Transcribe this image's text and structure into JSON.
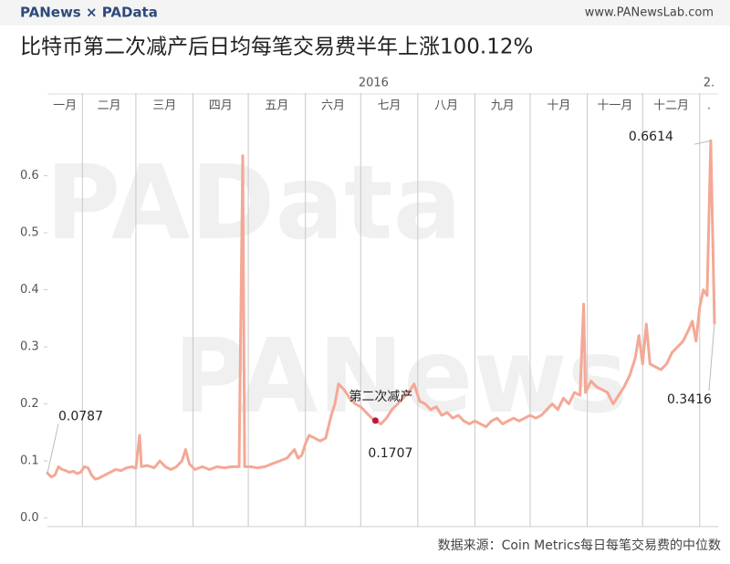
{
  "header": {
    "logo": "PANews × PAData",
    "site": "www.PANewsLab.com"
  },
  "watermarks": [
    "PAData",
    "PANews"
  ],
  "source": "数据来源：Coin Metrics每日每笔交易费的中位数",
  "chart_data": {
    "type": "line",
    "title": "比特币第二次减产后日均每笔交易费半年上涨100.12%",
    "annotation": "第二次减产",
    "year_ticks": [
      {
        "value": 0,
        "label": "2016"
      },
      {
        "value": 366,
        "label": "2."
      }
    ],
    "xticks": [
      {
        "value": 0,
        "label": "一月"
      },
      {
        "value": 31,
        "label": "二月"
      },
      {
        "value": 60,
        "label": "三月"
      },
      {
        "value": 91,
        "label": "四月"
      },
      {
        "value": 121,
        "label": "五月"
      },
      {
        "value": 152,
        "label": "六月"
      },
      {
        "value": 182,
        "label": "七月"
      },
      {
        "value": 213,
        "label": "八月"
      },
      {
        "value": 244,
        "label": "九月"
      },
      {
        "value": 274,
        "label": "十月"
      },
      {
        "value": 305,
        "label": "十一月"
      },
      {
        "value": 335,
        "label": "十二月"
      },
      {
        "value": 366,
        "label": "."
      }
    ],
    "xlim": [
      12,
      376
    ],
    "ylim": [
      -0.015,
      0.7
    ],
    "yticks": [
      {
        "value": 0,
        "label": "0.0"
      },
      0.1,
      0.2,
      0.3,
      0.4,
      0.5,
      0.6
    ],
    "grid": false,
    "highlight_color": "#c0143c",
    "series": [
      {
        "name": "每日每笔交易费的中位数",
        "color": "#f4a896",
        "x": [
          12,
          14,
          16,
          18,
          20,
          22,
          24,
          26,
          28,
          30,
          32,
          34,
          36,
          38,
          40,
          43,
          46,
          49,
          52,
          55,
          58,
          60,
          62,
          63,
          66,
          70,
          73,
          76,
          79,
          82,
          85,
          87,
          89,
          92,
          96,
          100,
          104,
          108,
          112,
          116,
          118,
          119,
          122,
          126,
          130,
          134,
          138,
          142,
          146,
          148,
          150,
          152,
          154,
          157,
          160,
          163,
          166,
          168,
          170,
          173,
          176,
          179,
          182,
          185,
          188,
          190,
          193,
          196,
          199,
          202,
          205,
          208,
          211,
          214,
          217,
          220,
          223,
          226,
          229,
          232,
          235,
          238,
          241,
          244,
          247,
          250,
          253,
          256,
          259,
          262,
          265,
          268,
          271,
          274,
          277,
          280,
          283,
          286,
          289,
          292,
          295,
          298,
          301,
          303,
          304,
          307,
          310,
          313,
          316,
          319,
          322,
          325,
          328,
          331,
          333,
          335,
          337,
          339,
          342,
          345,
          348,
          351,
          354,
          357,
          360,
          362,
          364,
          366,
          368,
          370,
          372,
          374
        ],
        "values": [
          0.0787,
          0.072,
          0.075,
          0.09,
          0.085,
          0.083,
          0.08,
          0.082,
          0.078,
          0.08,
          0.09,
          0.088,
          0.075,
          0.068,
          0.07,
          0.075,
          0.08,
          0.085,
          0.083,
          0.088,
          0.09,
          0.087,
          0.145,
          0.09,
          0.092,
          0.088,
          0.1,
          0.09,
          0.085,
          0.09,
          0.1,
          0.12,
          0.095,
          0.085,
          0.09,
          0.085,
          0.09,
          0.088,
          0.09,
          0.09,
          0.635,
          0.09,
          0.09,
          0.088,
          0.09,
          0.095,
          0.1,
          0.105,
          0.12,
          0.105,
          0.11,
          0.13,
          0.145,
          0.14,
          0.135,
          0.14,
          0.18,
          0.2,
          0.235,
          0.225,
          0.21,
          0.2,
          0.195,
          0.185,
          0.175,
          0.1707,
          0.165,
          0.175,
          0.19,
          0.2,
          0.21,
          0.22,
          0.235,
          0.205,
          0.2,
          0.19,
          0.195,
          0.18,
          0.185,
          0.175,
          0.18,
          0.17,
          0.165,
          0.17,
          0.165,
          0.16,
          0.17,
          0.175,
          0.165,
          0.17,
          0.175,
          0.17,
          0.175,
          0.18,
          0.175,
          0.18,
          0.19,
          0.2,
          0.19,
          0.21,
          0.2,
          0.22,
          0.215,
          0.375,
          0.22,
          0.24,
          0.23,
          0.225,
          0.22,
          0.2,
          0.215,
          0.23,
          0.25,
          0.28,
          0.32,
          0.27,
          0.34,
          0.27,
          0.265,
          0.26,
          0.27,
          0.29,
          0.3,
          0.31,
          0.33,
          0.345,
          0.31,
          0.37,
          0.4,
          0.39,
          0.6614,
          0.3416
        ],
        "value_labels": [
          "0.0787",
          null,
          null,
          null,
          null,
          null,
          null,
          null,
          null,
          null,
          null,
          null,
          null,
          null,
          null,
          null,
          null,
          null,
          null,
          null,
          null,
          null,
          null,
          null,
          null,
          null,
          null,
          null,
          null,
          null,
          null,
          null,
          null,
          null,
          null,
          null,
          null,
          null,
          null,
          null,
          null,
          null,
          null,
          null,
          null,
          null,
          null,
          null,
          null,
          null,
          null,
          null,
          null,
          null,
          null,
          null,
          null,
          null,
          null,
          null,
          null,
          null,
          null,
          null,
          null,
          "0.1707",
          null,
          null,
          null,
          null,
          null,
          null,
          null,
          null,
          null,
          null,
          null,
          null,
          null,
          null,
          null,
          null,
          null,
          null,
          null,
          null,
          null,
          null,
          null,
          null,
          null,
          null,
          null,
          null,
          null,
          null,
          null,
          null,
          null,
          null,
          null,
          null,
          null,
          null,
          null,
          null,
          null,
          null,
          null,
          null,
          null,
          null,
          null,
          null,
          null,
          null,
          null,
          null,
          null,
          null,
          null,
          null,
          null,
          null,
          null,
          null,
          null,
          null,
          null,
          null,
          "0.6614",
          "0.3416"
        ]
      }
    ]
  }
}
